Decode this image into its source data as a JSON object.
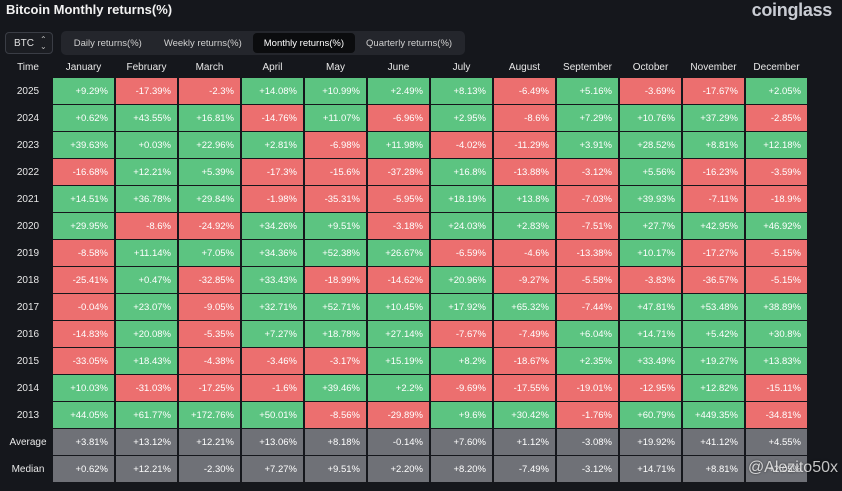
{
  "page": {
    "title": "Bitcoin Monthly returns(%)",
    "brand": "coinglass",
    "watermark": "@Alezito50x"
  },
  "toolbar": {
    "asset": "BTC",
    "tabs": [
      {
        "label": "Daily returns(%)",
        "active": false
      },
      {
        "label": "Weekly returns(%)",
        "active": false
      },
      {
        "label": "Monthly returns(%)",
        "active": true
      },
      {
        "label": "Quarterly returns(%)",
        "active": false
      }
    ]
  },
  "colors": {
    "positive": "#5cc481",
    "negative": "#ec6f6f",
    "summary": "#6f7177"
  },
  "table": {
    "headers": [
      "Time",
      "January",
      "February",
      "March",
      "April",
      "May",
      "June",
      "July",
      "August",
      "September",
      "October",
      "November",
      "December"
    ],
    "rows": [
      {
        "label": "2025",
        "values": [
          "+9.29%",
          "-17.39%",
          "-2.3%",
          "+14.08%",
          "+10.99%",
          "+2.49%",
          "+8.13%",
          "-6.49%",
          "+5.16%",
          "-3.69%",
          "-17.67%",
          "+2.05%"
        ]
      },
      {
        "label": "2024",
        "values": [
          "+0.62%",
          "+43.55%",
          "+16.81%",
          "-14.76%",
          "+11.07%",
          "-6.96%",
          "+2.95%",
          "-8.6%",
          "+7.29%",
          "+10.76%",
          "+37.29%",
          "-2.85%"
        ]
      },
      {
        "label": "2023",
        "values": [
          "+39.63%",
          "+0.03%",
          "+22.96%",
          "+2.81%",
          "-6.98%",
          "+11.98%",
          "-4.02%",
          "-11.29%",
          "+3.91%",
          "+28.52%",
          "+8.81%",
          "+12.18%"
        ]
      },
      {
        "label": "2022",
        "values": [
          "-16.68%",
          "+12.21%",
          "+5.39%",
          "-17.3%",
          "-15.6%",
          "-37.28%",
          "+16.8%",
          "-13.88%",
          "-3.12%",
          "+5.56%",
          "-16.23%",
          "-3.59%"
        ]
      },
      {
        "label": "2021",
        "values": [
          "+14.51%",
          "+36.78%",
          "+29.84%",
          "-1.98%",
          "-35.31%",
          "-5.95%",
          "+18.19%",
          "+13.8%",
          "-7.03%",
          "+39.93%",
          "-7.11%",
          "-18.9%"
        ]
      },
      {
        "label": "2020",
        "values": [
          "+29.95%",
          "-8.6%",
          "-24.92%",
          "+34.26%",
          "+9.51%",
          "-3.18%",
          "+24.03%",
          "+2.83%",
          "-7.51%",
          "+27.7%",
          "+42.95%",
          "+46.92%"
        ]
      },
      {
        "label": "2019",
        "values": [
          "-8.58%",
          "+11.14%",
          "+7.05%",
          "+34.36%",
          "+52.38%",
          "+26.67%",
          "-6.59%",
          "-4.6%",
          "-13.38%",
          "+10.17%",
          "-17.27%",
          "-5.15%"
        ]
      },
      {
        "label": "2018",
        "values": [
          "-25.41%",
          "+0.47%",
          "-32.85%",
          "+33.43%",
          "-18.99%",
          "-14.62%",
          "+20.96%",
          "-9.27%",
          "-5.58%",
          "-3.83%",
          "-36.57%",
          "-5.15%"
        ]
      },
      {
        "label": "2017",
        "values": [
          "-0.04%",
          "+23.07%",
          "-9.05%",
          "+32.71%",
          "+52.71%",
          "+10.45%",
          "+17.92%",
          "+65.32%",
          "-7.44%",
          "+47.81%",
          "+53.48%",
          "+38.89%"
        ]
      },
      {
        "label": "2016",
        "values": [
          "-14.83%",
          "+20.08%",
          "-5.35%",
          "+7.27%",
          "+18.78%",
          "+27.14%",
          "-7.67%",
          "-7.49%",
          "+6.04%",
          "+14.71%",
          "+5.42%",
          "+30.8%"
        ]
      },
      {
        "label": "2015",
        "values": [
          "-33.05%",
          "+18.43%",
          "-4.38%",
          "-3.46%",
          "-3.17%",
          "+15.19%",
          "+8.2%",
          "-18.67%",
          "+2.35%",
          "+33.49%",
          "+19.27%",
          "+13.83%"
        ]
      },
      {
        "label": "2014",
        "values": [
          "+10.03%",
          "-31.03%",
          "-17.25%",
          "-1.6%",
          "+39.46%",
          "+2.2%",
          "-9.69%",
          "-17.55%",
          "-19.01%",
          "-12.95%",
          "+12.82%",
          "-15.11%"
        ]
      },
      {
        "label": "2013",
        "values": [
          "+44.05%",
          "+61.77%",
          "+172.76%",
          "+50.01%",
          "-8.56%",
          "-29.89%",
          "+9.6%",
          "+30.42%",
          "-1.76%",
          "+60.79%",
          "+449.35%",
          "-34.81%"
        ]
      }
    ],
    "summary": [
      {
        "label": "Average",
        "values": [
          "+3.81%",
          "+13.12%",
          "+12.21%",
          "+13.06%",
          "+8.18%",
          "-0.14%",
          "+7.60%",
          "+1.12%",
          "-3.08%",
          "+19.92%",
          "+41.12%",
          "+4.55%"
        ]
      },
      {
        "label": "Median",
        "values": [
          "+0.62%",
          "+12.21%",
          "-2.30%",
          "+7.27%",
          "+9.51%",
          "+2.20%",
          "+8.20%",
          "-7.49%",
          "-3.12%",
          "+14.71%",
          "+8.81%",
          "+2.05%"
        ]
      }
    ]
  }
}
